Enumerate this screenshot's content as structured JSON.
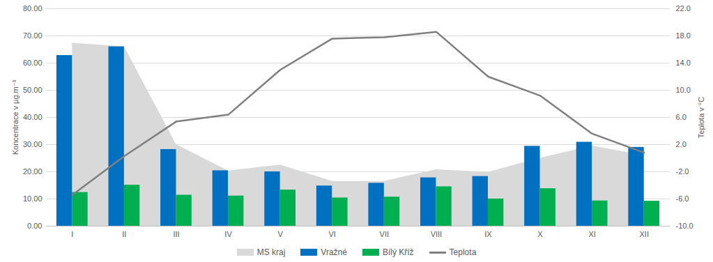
{
  "chart_data": {
    "type": "bar",
    "categories": [
      "I",
      "II",
      "III",
      "IV",
      "V",
      "VI",
      "VII",
      "VIII",
      "IX",
      "X",
      "XI",
      "XII"
    ],
    "series": [
      {
        "name": "MS kraj",
        "type": "area",
        "color": "#d9d9d9",
        "values": [
          67.3,
          66.0,
          30.0,
          20.3,
          22.5,
          16.5,
          16.5,
          20.8,
          19.8,
          25.0,
          29.5,
          26.0
        ]
      },
      {
        "name": "Vražné",
        "type": "bar",
        "color": "#0070c0",
        "values": [
          62.8,
          66.0,
          28.2,
          20.4,
          20.0,
          14.8,
          15.8,
          17.8,
          18.3,
          29.4,
          30.9,
          29.0
        ]
      },
      {
        "name": "Bílý Kříž",
        "type": "bar",
        "color": "#00b050",
        "values": [
          12.4,
          15.1,
          11.4,
          11.1,
          13.3,
          10.4,
          10.7,
          14.5,
          10.0,
          13.8,
          9.3,
          9.2
        ]
      },
      {
        "name": "Teplota",
        "type": "line",
        "axis": "y2",
        "color": "#7f7f7f",
        "values": [
          -5.4,
          0.3,
          5.4,
          6.4,
          13.0,
          17.6,
          17.8,
          18.6,
          12.0,
          9.2,
          3.6,
          0.8
        ]
      }
    ],
    "y_label": "Koncentrace v µg.m⁻³",
    "y2_label": "Teplota v °C",
    "ylim": [
      0,
      80
    ],
    "yticks": [
      {
        "value": 0,
        "label": "0.00"
      },
      {
        "value": 10,
        "label": "10.00"
      },
      {
        "value": 20,
        "label": "20.00"
      },
      {
        "value": 30,
        "label": "30.00"
      },
      {
        "value": 40,
        "label": "40.00"
      },
      {
        "value": 50,
        "label": "50.00"
      },
      {
        "value": 60,
        "label": "60.00"
      },
      {
        "value": 70,
        "label": "70.00"
      },
      {
        "value": 80,
        "label": "80.00"
      }
    ],
    "y2lim": [
      -10,
      22
    ],
    "y2ticks": [
      {
        "value": -10,
        "label": "-10.0"
      },
      {
        "value": -6,
        "label": "-6.0"
      },
      {
        "value": -2,
        "label": "-2.0"
      },
      {
        "value": 2,
        "label": "2.0"
      },
      {
        "value": 6,
        "label": "6.0"
      },
      {
        "value": 10,
        "label": "10.0"
      },
      {
        "value": 14,
        "label": "14.0"
      },
      {
        "value": 18,
        "label": "18.0"
      },
      {
        "value": 22,
        "label": "22.0"
      }
    ],
    "grid": true,
    "legend": "bottom"
  }
}
